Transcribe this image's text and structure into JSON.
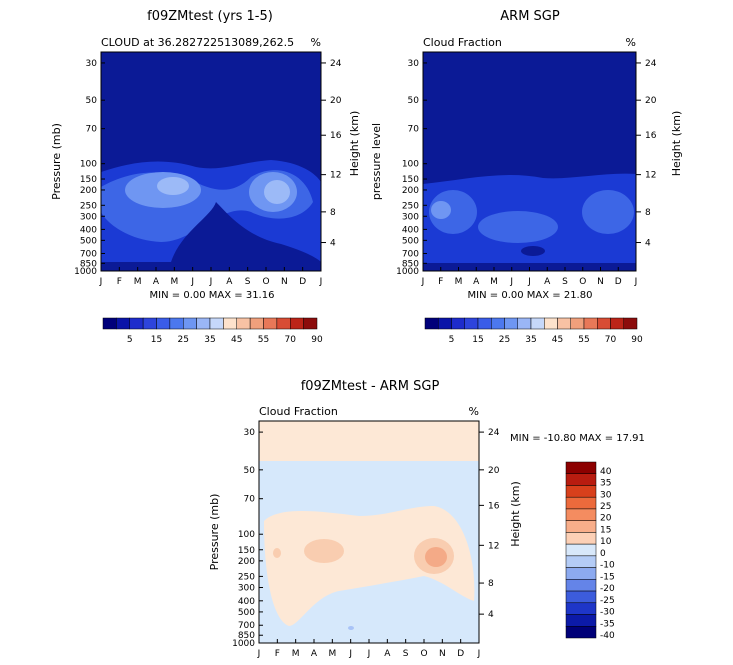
{
  "chart_data": [
    {
      "type": "contour",
      "id": "model",
      "title": "f09ZMtest (yrs 1-5)",
      "subtitle_left": "CLOUD at 36.282722513089,262.5",
      "units": "%",
      "ylabel": "Pressure (mb)",
      "ylabel_right": "Height (km)",
      "x_ticks": [
        "J",
        "F",
        "M",
        "A",
        "M",
        "J",
        "J",
        "A",
        "S",
        "O",
        "N",
        "D",
        "J"
      ],
      "y_ticks": [
        "30",
        "50",
        "70",
        "100",
        "150",
        "200",
        "250",
        "300",
        "400",
        "500",
        "700",
        "850",
        "1000"
      ],
      "height_ticks": [
        "24",
        "20",
        "16",
        "12",
        "8",
        "4"
      ],
      "stats": "MIN =    0.00 MAX =   31.16",
      "min": 0.0,
      "max": 31.16,
      "colorbar_labels": [
        "5",
        "15",
        "25",
        "35",
        "45",
        "55",
        "70",
        "90"
      ]
    },
    {
      "type": "contour",
      "id": "obs",
      "title": "ARM SGP",
      "subtitle_left": "Cloud Fraction",
      "units": "%",
      "ylabel": "pressure level",
      "ylabel_right": "Height (km)",
      "x_ticks": [
        "J",
        "F",
        "M",
        "A",
        "M",
        "J",
        "J",
        "A",
        "S",
        "O",
        "N",
        "D",
        "J"
      ],
      "y_ticks": [
        "30",
        "50",
        "70",
        "100",
        "150",
        "200",
        "250",
        "300",
        "400",
        "500",
        "700",
        "850",
        "1000"
      ],
      "height_ticks": [
        "24",
        "20",
        "16",
        "12",
        "8",
        "4"
      ],
      "stats": "MIN =    0.00 MAX =   21.80",
      "min": 0.0,
      "max": 21.8,
      "colorbar_labels": [
        "5",
        "15",
        "25",
        "35",
        "45",
        "55",
        "70",
        "90"
      ]
    },
    {
      "type": "contour",
      "id": "diff",
      "title": "f09ZMtest - ARM SGP",
      "subtitle_left": "Cloud Fraction",
      "units": "%",
      "ylabel": "Pressure (mb)",
      "ylabel_right": "Height (km)",
      "x_ticks": [
        "J",
        "F",
        "M",
        "A",
        "M",
        "J",
        "J",
        "A",
        "S",
        "O",
        "N",
        "D",
        "J"
      ],
      "y_ticks": [
        "30",
        "50",
        "70",
        "100",
        "150",
        "200",
        "250",
        "300",
        "400",
        "500",
        "700",
        "850",
        "1000"
      ],
      "height_ticks": [
        "24",
        "20",
        "16",
        "12",
        "8",
        "4"
      ],
      "stats": "MIN = -10.80 MAX =   17.91",
      "min": -10.8,
      "max": 17.91,
      "colorbar_labels": [
        "40",
        "35",
        "30",
        "25",
        "20",
        "15",
        "10",
        "0",
        "-10",
        "-15",
        "-20",
        "-25",
        "-30",
        "-35",
        "-40"
      ]
    }
  ],
  "palettes": {
    "sequential": [
      "#00007a",
      "#0a14a8",
      "#1e2ccc",
      "#2e44dc",
      "#3a5ce8",
      "#4c78ee",
      "#6e96f2",
      "#9ab6f6",
      "#c6d8fa",
      "#fde2cc",
      "#f8c2a4",
      "#f0a07c",
      "#e87858",
      "#d84c34",
      "#bc2418",
      "#8c0c0c"
    ],
    "diverging": [
      "#8c0000",
      "#b81c10",
      "#d8401c",
      "#ec6a3c",
      "#f48c60",
      "#f8ae8a",
      "#fcd0b6",
      "#d8e8fa",
      "#b4ccf6",
      "#8caaf0",
      "#6484e8",
      "#3c5cdc",
      "#1e36c8",
      "#0c1aa8",
      "#000078"
    ]
  },
  "field_colors": {
    "dark": "#0b1a96",
    "mid": "#1b3ad4",
    "light": "#3d66e6",
    "lighter": "#6f96f2",
    "pale": "#9cbaf7",
    "peach": "#fde8d6",
    "peach2": "#f9cdb0",
    "peach3": "#f4aa87",
    "lightblue": "#d6e8fb",
    "blue2": "#a9c3f7"
  }
}
